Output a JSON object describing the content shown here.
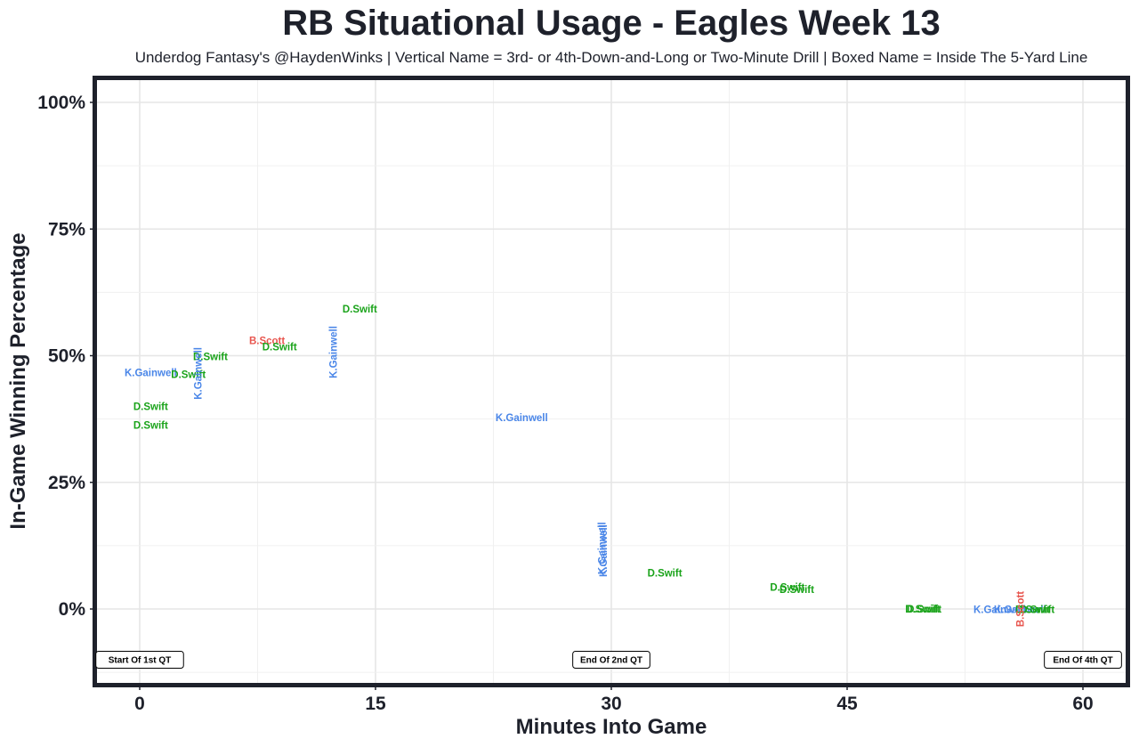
{
  "chart_data": {
    "type": "scatter",
    "title": "RB Situational Usage - Eagles Week 13",
    "subtitle": "Underdog Fantasy's @HaydenWinks | Vertical Name = 3rd- or 4th-Down-and-Long or Two-Minute Drill | Boxed Name = Inside The 5-Yard Line",
    "xlabel": "Minutes Into Game",
    "ylabel": "In-Game Winning Percentage",
    "xlim": [
      -3,
      63
    ],
    "ylim": [
      -15,
      105
    ],
    "x_ticks": [
      0,
      15,
      30,
      45,
      60
    ],
    "x_tick_labels": [
      "0",
      "15",
      "30",
      "45",
      "60"
    ],
    "y_ticks": [
      0,
      25,
      50,
      75,
      100
    ],
    "y_tick_labels": [
      "0%",
      "25%",
      "50%",
      "75%",
      "100%"
    ],
    "grid": true,
    "colors": {
      "D.Swift": "#1aa31a",
      "K.Gainwell": "#4a86e8",
      "B.Scott": "#e8564f"
    },
    "markers": [
      {
        "x": 0,
        "label": "Start Of 1st QT"
      },
      {
        "x": 30,
        "label": "End Of 2nd QT"
      },
      {
        "x": 60,
        "label": "End Of 4th QT"
      }
    ],
    "points": [
      {
        "x": 0.7,
        "y": 40,
        "name": "D.Swift",
        "vertical": false
      },
      {
        "x": 0.7,
        "y": 36.3,
        "name": "D.Swift",
        "vertical": false
      },
      {
        "x": 0.7,
        "y": 46.7,
        "name": "K.Gainwell",
        "vertical": false
      },
      {
        "x": 3.1,
        "y": 46.3,
        "name": "D.Swift",
        "vertical": false
      },
      {
        "x": 4.5,
        "y": 49.8,
        "name": "D.Swift",
        "vertical": false
      },
      {
        "x": 3.7,
        "y": 46.5,
        "name": "K.Gainwell",
        "vertical": true
      },
      {
        "x": 8.1,
        "y": 53,
        "name": "B.Scott",
        "vertical": false
      },
      {
        "x": 8.9,
        "y": 51.8,
        "name": "D.Swift",
        "vertical": false
      },
      {
        "x": 12.3,
        "y": 50.7,
        "name": "K.Gainwell",
        "vertical": true
      },
      {
        "x": 14,
        "y": 59.2,
        "name": "D.Swift",
        "vertical": false
      },
      {
        "x": 24.3,
        "y": 37.8,
        "name": "K.Gainwell",
        "vertical": false
      },
      {
        "x": 29.4,
        "y": 12,
        "name": "K.Gainwell",
        "vertical": true
      },
      {
        "x": 29.5,
        "y": 11.5,
        "name": "K.Gainwell",
        "vertical": true
      },
      {
        "x": 33.4,
        "y": 7.1,
        "name": "D.Swift",
        "vertical": false
      },
      {
        "x": 41.2,
        "y": 4.3,
        "name": "D.Swift",
        "vertical": false
      },
      {
        "x": 41.8,
        "y": 3.9,
        "name": "D.Swift",
        "vertical": false
      },
      {
        "x": 49.8,
        "y": 0,
        "name": "D.Swift",
        "vertical": false
      },
      {
        "x": 49.9,
        "y": 0,
        "name": "D.Swift",
        "vertical": false
      },
      {
        "x": 54.7,
        "y": -0.1,
        "name": "K.Gainwell",
        "vertical": false
      },
      {
        "x": 56,
        "y": -0.1,
        "name": "K.Gainwell",
        "vertical": false
      },
      {
        "x": 56.8,
        "y": -0.1,
        "name": "D.Swift",
        "vertical": false
      },
      {
        "x": 57.1,
        "y": -0.1,
        "name": "D.Swift",
        "vertical": false
      },
      {
        "x": 56,
        "y": 0,
        "name": "B.Scott",
        "vertical": true
      }
    ]
  }
}
